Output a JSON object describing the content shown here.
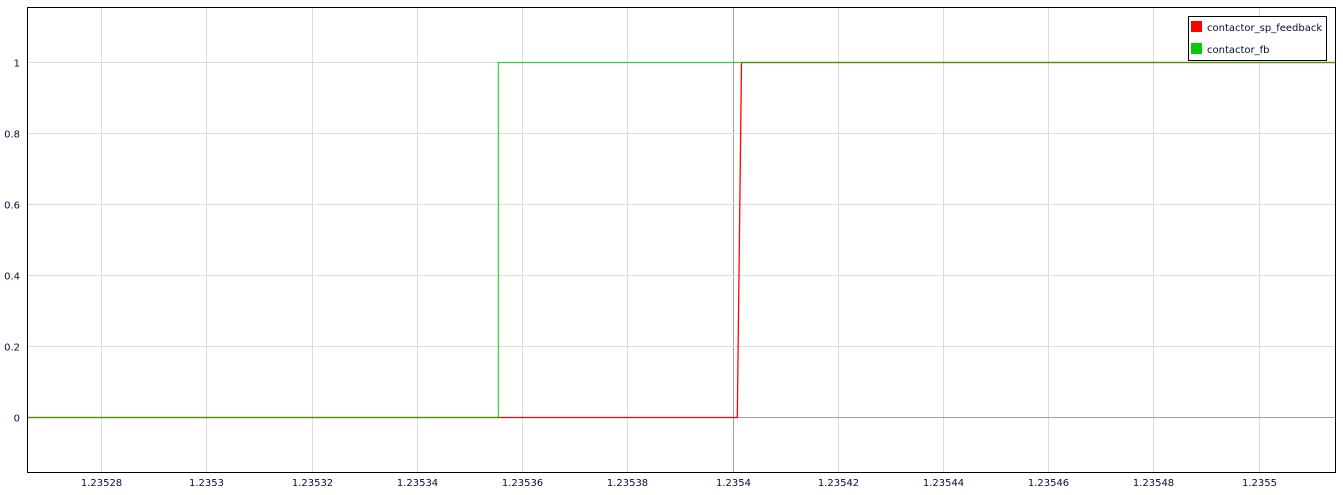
{
  "chart_data": {
    "type": "line",
    "title": "",
    "xlabel": "",
    "ylabel": "",
    "xlim": [
      1.235266,
      1.2355146
    ],
    "ylim": [
      -0.158,
      1.155
    ],
    "grid": true,
    "legend_placement": "top-right",
    "x_ticks": [
      "1.23528",
      "1.2353",
      "1.23532",
      "1.23534",
      "1.23536",
      "1.23538",
      "1.2354",
      "1.23542",
      "1.23544",
      "1.23546",
      "1.23548",
      "1.2355"
    ],
    "x_tick_values": [
      1.23528,
      1.2353,
      1.23532,
      1.23534,
      1.23536,
      1.23538,
      1.2354,
      1.23542,
      1.23544,
      1.23546,
      1.23548,
      1.2355
    ],
    "y_ticks": [
      "0",
      "0.2",
      "0.4",
      "0.6",
      "0.8",
      "1"
    ],
    "y_tick_values": [
      0,
      0.2,
      0.4,
      0.6,
      0.8,
      1
    ],
    "series": [
      {
        "name": "contactor_sp_feedback",
        "color": "#ff0000",
        "x": [
          1.235266,
          1.2354009,
          1.2354017,
          1.2355146
        ],
        "y": [
          0,
          0,
          1,
          1
        ]
      },
      {
        "name": "contactor_fb",
        "color": "#00cc00",
        "x": [
          1.235266,
          1.2353555,
          1.2353555,
          1.2355146
        ],
        "y": [
          0,
          0,
          1,
          1
        ]
      }
    ]
  }
}
